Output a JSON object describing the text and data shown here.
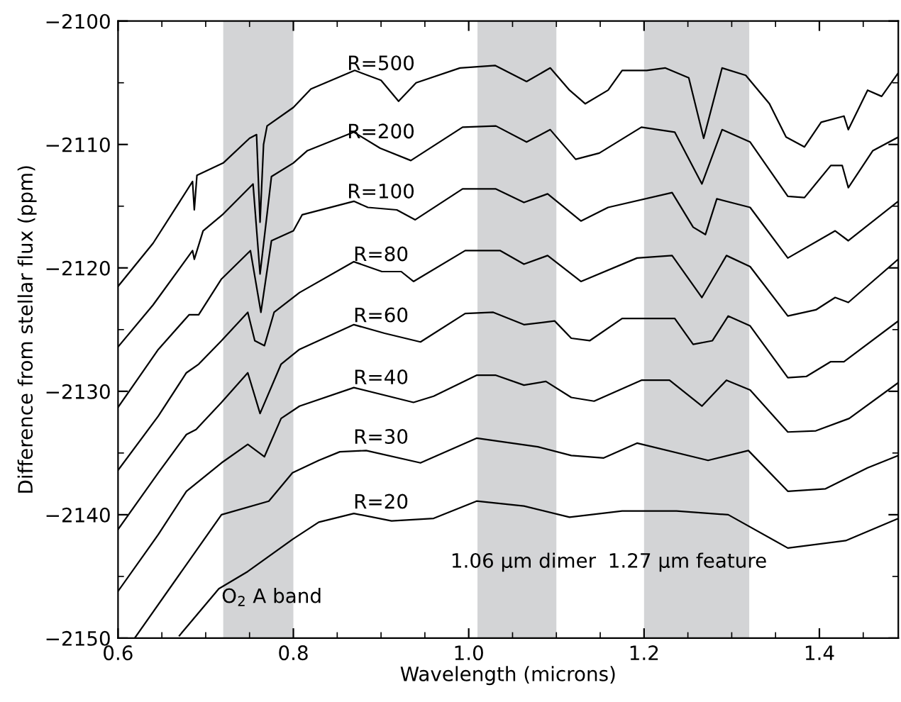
{
  "chart_data": {
    "type": "line",
    "xlabel": "Wavelength (microns)",
    "ylabel": "Difference from stellar flux (ppm)",
    "xlim": [
      0.6,
      1.49
    ],
    "xticks": [
      0.6,
      0.8,
      {
        "value": 1.0,
        "label": "1.0"
      },
      1.2,
      1.4
    ],
    "ylim": [
      -2150,
      -2100
    ],
    "yticks": [
      -2150,
      -2140,
      -2130,
      -2120,
      -2110,
      -2100
    ],
    "grid": false,
    "legend": false,
    "marker": "none",
    "line_style": "solid",
    "bands": [
      {
        "axis": "x",
        "from": 0.72,
        "to": 0.8,
        "color": "#d3d4d6"
      },
      {
        "axis": "x",
        "from": 1.01,
        "to": 1.1,
        "color": "#d3d4d6"
      },
      {
        "axis": "x",
        "from": 1.2,
        "to": 1.32,
        "color": "#d3d4d6"
      }
    ],
    "annotations": [
      {
        "text": "O$_{2}$ A band",
        "x": 0.718,
        "y": -2146.7
      },
      "1.06 μm dimer",
      "1.27 μm feature"
    ],
    "series": [
      {
        "name": "R=500",
        "color": "#000000",
        "x": [
          0.6,
          0.64,
          0.685,
          0.687,
          0.69,
          0.72,
          0.75,
          0.758,
          0.762,
          0.766,
          0.77,
          0.8,
          0.82,
          0.87,
          0.9,
          0.92,
          0.94,
          0.99,
          1.03,
          1.066,
          1.093,
          1.115,
          1.133,
          1.159,
          1.175,
          1.203,
          1.224,
          1.251,
          1.268,
          1.289,
          1.316,
          1.343,
          1.362,
          1.383,
          1.402,
          1.428,
          1.433,
          1.455,
          1.471,
          1.49
        ],
        "values": [
          -2121.5,
          -2118,
          -2113,
          -2115.3,
          -2112.5,
          -2111.5,
          -2109.5,
          -2109.2,
          -2116.3,
          -2110,
          -2108.5,
          -2107,
          -2105.5,
          -2104,
          -2104.8,
          -2106.5,
          -2105,
          -2103.8,
          -2103.6,
          -2104.9,
          -2103.8,
          -2105.6,
          -2106.7,
          -2105.6,
          -2104,
          -2104,
          -2103.8,
          -2104.6,
          -2109.5,
          -2103.8,
          -2104.4,
          -2106.7,
          -2109.4,
          -2110.2,
          -2108.2,
          -2107.7,
          -2108.8,
          -2105.6,
          -2106.1,
          -2104.2
        ]
      },
      {
        "name": "R=200",
        "color": "#000000",
        "x": [
          0.6,
          0.64,
          0.685,
          0.687,
          0.697,
          0.719,
          0.754,
          0.762,
          0.775,
          0.8,
          0.816,
          0.869,
          0.899,
          0.934,
          0.993,
          1.031,
          1.066,
          1.093,
          1.122,
          1.149,
          1.197,
          1.235,
          1.266,
          1.289,
          1.321,
          1.364,
          1.383,
          1.413,
          1.426,
          1.433,
          1.461,
          1.49
        ],
        "values": [
          -2126.4,
          -2123,
          -2118.6,
          -2119.3,
          -2117,
          -2115.7,
          -2113.2,
          -2120.5,
          -2112.6,
          -2111.5,
          -2110.5,
          -2109,
          -2110.3,
          -2111.3,
          -2108.6,
          -2108.5,
          -2109.8,
          -2108.8,
          -2111.2,
          -2110.7,
          -2108.6,
          -2109,
          -2113.2,
          -2108.8,
          -2109.8,
          -2114.2,
          -2114.3,
          -2111.7,
          -2111.7,
          -2113.5,
          -2110.5,
          -2109.4
        ]
      },
      {
        "name": "R=100",
        "color": "#000000",
        "x": [
          0.6,
          0.646,
          0.681,
          0.692,
          0.718,
          0.751,
          0.763,
          0.775,
          0.8,
          0.81,
          0.869,
          0.885,
          0.918,
          0.939,
          0.993,
          1.031,
          1.063,
          1.09,
          1.128,
          1.159,
          1.232,
          1.256,
          1.27,
          1.283,
          1.321,
          1.364,
          1.418,
          1.433,
          1.49
        ],
        "values": [
          -2131.3,
          -2126.6,
          -2123.8,
          -2123.8,
          -2120.9,
          -2118.6,
          -2123.6,
          -2117.8,
          -2117,
          -2115.7,
          -2114.6,
          -2115.1,
          -2115.3,
          -2116.1,
          -2113.6,
          -2113.6,
          -2114.7,
          -2114,
          -2116.2,
          -2115.1,
          -2113.9,
          -2116.7,
          -2117.3,
          -2114.4,
          -2115.1,
          -2119.2,
          -2117,
          -2117.8,
          -2114.6
        ]
      },
      {
        "name": "R=80",
        "color": "#000000",
        "x": [
          0.6,
          0.646,
          0.678,
          0.692,
          0.718,
          0.748,
          0.756,
          0.767,
          0.778,
          0.807,
          0.869,
          0.901,
          0.923,
          0.937,
          0.996,
          1.036,
          1.063,
          1.09,
          1.128,
          1.192,
          1.232,
          1.266,
          1.294,
          1.321,
          1.364,
          1.396,
          1.418,
          1.433,
          1.49
        ],
        "values": [
          -2136.4,
          -2132,
          -2128.5,
          -2127.8,
          -2125.9,
          -2123.6,
          -2125.9,
          -2126.3,
          -2123.6,
          -2122,
          -2119.5,
          -2120.3,
          -2120.3,
          -2121.1,
          -2118.6,
          -2118.6,
          -2119.7,
          -2119,
          -2121.1,
          -2119.2,
          -2119,
          -2122.4,
          -2119,
          -2119.9,
          -2123.9,
          -2123.4,
          -2122.4,
          -2122.8,
          -2119.3
        ]
      },
      {
        "name": "R=60",
        "color": "#000000",
        "x": [
          0.6,
          0.646,
          0.678,
          0.689,
          0.718,
          0.748,
          0.762,
          0.786,
          0.807,
          0.869,
          0.904,
          0.945,
          0.996,
          1.028,
          1.063,
          1.098,
          1.117,
          1.138,
          1.175,
          1.235,
          1.256,
          1.278,
          1.296,
          1.321,
          1.364,
          1.385,
          1.413,
          1.428,
          1.49
        ],
        "values": [
          -2141.2,
          -2136.6,
          -2133.5,
          -2133.1,
          -2130.9,
          -2128.5,
          -2131.8,
          -2127.8,
          -2126.6,
          -2124.6,
          -2125.3,
          -2126,
          -2123.7,
          -2123.6,
          -2124.6,
          -2124.3,
          -2125.7,
          -2125.9,
          -2124.1,
          -2124.1,
          -2126.2,
          -2125.9,
          -2123.9,
          -2124.7,
          -2128.9,
          -2128.8,
          -2127.6,
          -2127.6,
          -2124.3
        ]
      },
      {
        "name": "R=40",
        "color": "#000000",
        "x": [
          0.6,
          0.646,
          0.678,
          0.718,
          0.748,
          0.767,
          0.786,
          0.807,
          0.869,
          0.937,
          0.96,
          1.009,
          1.031,
          1.063,
          1.088,
          1.117,
          1.143,
          1.197,
          1.229,
          1.266,
          1.294,
          1.321,
          1.364,
          1.396,
          1.434,
          1.49
        ],
        "values": [
          -2146.2,
          -2141.6,
          -2138.1,
          -2135.8,
          -2134.3,
          -2135.3,
          -2132.2,
          -2131.2,
          -2129.7,
          -2130.9,
          -2130.4,
          -2128.7,
          -2128.7,
          -2129.5,
          -2129.2,
          -2130.5,
          -2130.8,
          -2129.1,
          -2129.1,
          -2131.2,
          -2129.1,
          -2129.9,
          -2133.3,
          -2133.2,
          -2132.2,
          -2129.3
        ]
      },
      {
        "name": "R=30",
        "color": "#000000",
        "x": [
          0.619,
          0.718,
          0.772,
          0.799,
          0.829,
          0.853,
          0.883,
          0.945,
          1.009,
          1.079,
          1.117,
          1.154,
          1.192,
          1.273,
          1.319,
          1.364,
          1.407,
          1.455,
          1.49
        ],
        "values": [
          -2150,
          -2140,
          -2138.9,
          -2136.6,
          -2135.6,
          -2134.9,
          -2134.8,
          -2135.8,
          -2133.8,
          -2134.5,
          -2135.2,
          -2135.4,
          -2134.2,
          -2135.6,
          -2134.8,
          -2138.1,
          -2137.9,
          -2136.2,
          -2135.2
        ]
      },
      {
        "name": "R=20",
        "color": "#000000",
        "x": [
          0.67,
          0.715,
          0.748,
          0.799,
          0.829,
          0.869,
          0.912,
          0.96,
          1.009,
          1.063,
          1.115,
          1.175,
          1.237,
          1.296,
          1.364,
          1.43,
          1.49
        ],
        "values": [
          -2149.8,
          -2146,
          -2144.6,
          -2142,
          -2140.6,
          -2139.9,
          -2140.5,
          -2140.3,
          -2138.9,
          -2139.3,
          -2140.2,
          -2139.7,
          -2139.7,
          -2140,
          -2142.7,
          -2142.1,
          -2140.3
        ]
      }
    ]
  }
}
